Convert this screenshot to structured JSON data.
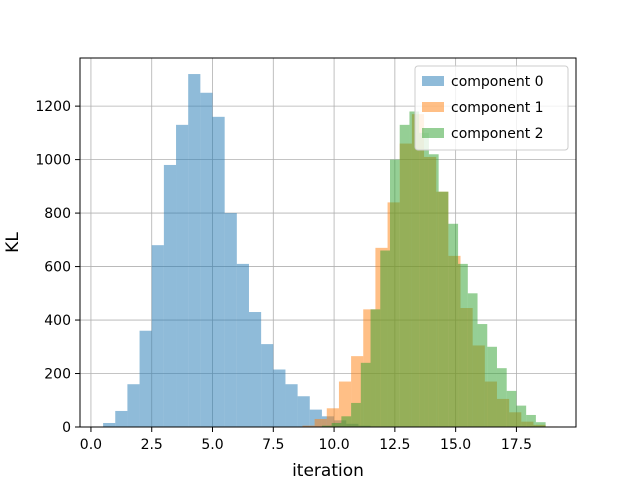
{
  "chart_data": {
    "type": "histogram",
    "xlabel": "iteration",
    "ylabel": "KL",
    "xlim": [
      -0.45,
      19.95
    ],
    "ylim": [
      0,
      1380
    ],
    "x_ticks": [
      0.0,
      2.5,
      5.0,
      7.5,
      10.0,
      12.5,
      15.0,
      17.5
    ],
    "x_tick_labels": [
      "0.0",
      "2.5",
      "5.0",
      "7.5",
      "10.0",
      "12.5",
      "15.0",
      "17.5"
    ],
    "y_ticks": [
      0,
      200,
      400,
      600,
      800,
      1000,
      1200
    ],
    "y_tick_labels": [
      "0",
      "200",
      "400",
      "600",
      "800",
      "1000",
      "1200"
    ],
    "grid": true,
    "legend_position": "top-right",
    "series": [
      {
        "name": "component 0",
        "color": "#1f77b4",
        "bins": [
          {
            "x0": 0.5,
            "x1": 1.0,
            "value": 15
          },
          {
            "x0": 1.0,
            "x1": 1.5,
            "value": 60
          },
          {
            "x0": 1.5,
            "x1": 2.0,
            "value": 160
          },
          {
            "x0": 2.0,
            "x1": 2.5,
            "value": 360
          },
          {
            "x0": 2.5,
            "x1": 3.0,
            "value": 680
          },
          {
            "x0": 3.0,
            "x1": 3.5,
            "value": 980
          },
          {
            "x0": 3.5,
            "x1": 4.0,
            "value": 1130
          },
          {
            "x0": 4.0,
            "x1": 4.5,
            "value": 1320
          },
          {
            "x0": 4.5,
            "x1": 5.0,
            "value": 1250
          },
          {
            "x0": 5.0,
            "x1": 5.5,
            "value": 1160
          },
          {
            "x0": 5.5,
            "x1": 6.0,
            "value": 800
          },
          {
            "x0": 6.0,
            "x1": 6.5,
            "value": 610
          },
          {
            "x0": 6.5,
            "x1": 7.0,
            "value": 430
          },
          {
            "x0": 7.0,
            "x1": 7.5,
            "value": 310
          },
          {
            "x0": 7.5,
            "x1": 8.0,
            "value": 215
          },
          {
            "x0": 8.0,
            "x1": 8.5,
            "value": 160
          },
          {
            "x0": 8.5,
            "x1": 9.0,
            "value": 115
          },
          {
            "x0": 9.0,
            "x1": 9.5,
            "value": 65
          },
          {
            "x0": 9.5,
            "x1": 10.0,
            "value": 40
          },
          {
            "x0": 10.0,
            "x1": 10.5,
            "value": 25
          },
          {
            "x0": 10.5,
            "x1": 11.0,
            "value": 12
          },
          {
            "x0": 11.0,
            "x1": 11.5,
            "value": 5
          }
        ]
      },
      {
        "name": "component 1",
        "color": "#ff7f0e",
        "bins": [
          {
            "x0": 8.7,
            "x1": 9.2,
            "value": 5
          },
          {
            "x0": 9.2,
            "x1": 9.7,
            "value": 30
          },
          {
            "x0": 9.7,
            "x1": 10.2,
            "value": 70
          },
          {
            "x0": 10.2,
            "x1": 10.7,
            "value": 170
          },
          {
            "x0": 10.7,
            "x1": 11.2,
            "value": 265
          },
          {
            "x0": 11.2,
            "x1": 11.7,
            "value": 440
          },
          {
            "x0": 11.7,
            "x1": 12.2,
            "value": 670
          },
          {
            "x0": 12.2,
            "x1": 12.7,
            "value": 840
          },
          {
            "x0": 12.7,
            "x1": 13.2,
            "value": 1060
          },
          {
            "x0": 13.2,
            "x1": 13.7,
            "value": 1170
          },
          {
            "x0": 13.7,
            "x1": 14.2,
            "value": 1010
          },
          {
            "x0": 14.2,
            "x1": 14.7,
            "value": 880
          },
          {
            "x0": 14.7,
            "x1": 15.2,
            "value": 640
          },
          {
            "x0": 15.2,
            "x1": 15.7,
            "value": 445
          },
          {
            "x0": 15.7,
            "x1": 16.2,
            "value": 305
          },
          {
            "x0": 16.2,
            "x1": 16.7,
            "value": 170
          },
          {
            "x0": 16.7,
            "x1": 17.2,
            "value": 105
          },
          {
            "x0": 17.2,
            "x1": 17.7,
            "value": 55
          },
          {
            "x0": 17.7,
            "x1": 18.2,
            "value": 20
          },
          {
            "x0": 18.2,
            "x1": 18.7,
            "value": 8
          },
          {
            "x0": 18.7,
            "x1": 19.2,
            "value": 2
          }
        ]
      },
      {
        "name": "component 2",
        "color": "#2ca02c",
        "bins": [
          {
            "x0": 9.5,
            "x1": 9.9,
            "value": 5
          },
          {
            "x0": 9.9,
            "x1": 10.3,
            "value": 15
          },
          {
            "x0": 10.3,
            "x1": 10.7,
            "value": 40
          },
          {
            "x0": 10.7,
            "x1": 11.1,
            "value": 90
          },
          {
            "x0": 11.1,
            "x1": 11.5,
            "value": 240
          },
          {
            "x0": 11.5,
            "x1": 11.9,
            "value": 440
          },
          {
            "x0": 11.9,
            "x1": 12.3,
            "value": 660
          },
          {
            "x0": 12.3,
            "x1": 12.7,
            "value": 1000
          },
          {
            "x0": 12.7,
            "x1": 13.1,
            "value": 1130
          },
          {
            "x0": 13.1,
            "x1": 13.5,
            "value": 1180
          },
          {
            "x0": 13.5,
            "x1": 13.9,
            "value": 1100
          },
          {
            "x0": 13.9,
            "x1": 14.3,
            "value": 1020
          },
          {
            "x0": 14.3,
            "x1": 14.7,
            "value": 880
          },
          {
            "x0": 14.7,
            "x1": 15.1,
            "value": 760
          },
          {
            "x0": 15.1,
            "x1": 15.5,
            "value": 610
          },
          {
            "x0": 15.5,
            "x1": 15.9,
            "value": 500
          },
          {
            "x0": 15.9,
            "x1": 16.3,
            "value": 385
          },
          {
            "x0": 16.3,
            "x1": 16.7,
            "value": 300
          },
          {
            "x0": 16.7,
            "x1": 17.1,
            "value": 220
          },
          {
            "x0": 17.1,
            "x1": 17.5,
            "value": 135
          },
          {
            "x0": 17.5,
            "x1": 17.9,
            "value": 80
          },
          {
            "x0": 17.9,
            "x1": 18.3,
            "value": 45
          },
          {
            "x0": 18.3,
            "x1": 18.7,
            "value": 18
          }
        ]
      }
    ]
  },
  "style": {
    "bar_opacity": 0.5,
    "grid_color": "#b0b0b0",
    "legend_border": "#cccccc"
  }
}
